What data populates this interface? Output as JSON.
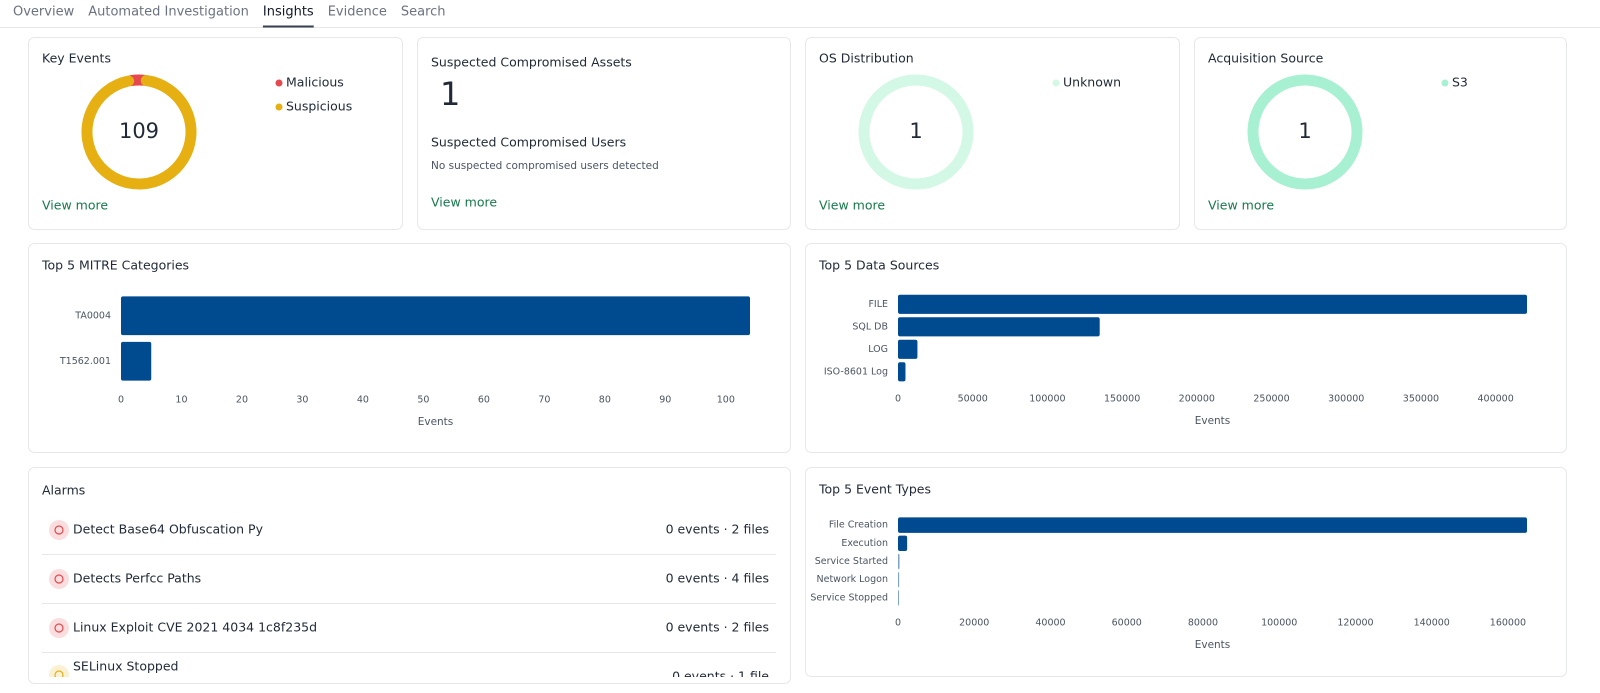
{
  "tabs": [
    "Overview",
    "Automated Investigation",
    "Insights",
    "Evidence",
    "Search"
  ],
  "chart_data": [
    {
      "type": "donut",
      "title": "Key Events",
      "total": 109,
      "categories": [
        "Malicious",
        "Suspicious"
      ],
      "values": [
        5,
        104
      ],
      "colors": [
        "#e5484d",
        "#e6b012"
      ],
      "link": "View more"
    },
    {
      "type": "donut",
      "title": "OS Distribution",
      "total": 1,
      "categories": [
        "Unknown"
      ],
      "values": [
        1
      ],
      "colors": [
        "#d3f8e6"
      ],
      "link": "View more"
    },
    {
      "type": "donut",
      "title": "Acquisition Source",
      "total": 1,
      "categories": [
        "S3"
      ],
      "values": [
        1
      ],
      "colors": [
        "#a8f0d2"
      ],
      "link": "View more"
    },
    {
      "type": "hbar",
      "title": "Top 5 MITRE Categories",
      "categories": [
        "TA0004",
        "T1562.001"
      ],
      "values": [
        104,
        5
      ],
      "color": "#004a8f",
      "xlim": [
        0,
        104
      ],
      "xticks": [
        0,
        10,
        20,
        30,
        40,
        50,
        60,
        70,
        80,
        90,
        100
      ],
      "xlabel": "Events"
    },
    {
      "type": "hbar",
      "title": "Top 5 Data Sources",
      "categories": [
        "FILE",
        "SQL DB",
        "LOG",
        "ISO-8601 Log"
      ],
      "values": [
        421000,
        135000,
        13000,
        5000
      ],
      "color": "#004a8f",
      "xlim": [
        0,
        421000
      ],
      "xticks": [
        0,
        50000,
        100000,
        150000,
        200000,
        250000,
        300000,
        350000,
        400000
      ],
      "xlabel": "Events"
    },
    {
      "type": "hbar",
      "title": "Top 5 Event Types",
      "categories": [
        "File Creation",
        "Execution",
        "Service Started",
        "Network Logon",
        "Service Stopped"
      ],
      "values": [
        165000,
        2400,
        400,
        300,
        200
      ],
      "color": "#004a8f",
      "xlim": [
        0,
        165000
      ],
      "xticks": [
        0,
        20000,
        40000,
        60000,
        80000,
        100000,
        120000,
        140000,
        160000
      ],
      "xlabel": "Events"
    }
  ],
  "assets": {
    "title": "Suspected Compromised Assets",
    "count": 1,
    "users_title": "Suspected Compromised Users",
    "users_text": "No suspected compromised users detected",
    "link": "View more"
  },
  "alarms": {
    "title": "Alarms",
    "items": [
      {
        "name": "Detect Base64 Obfuscation Py",
        "summary": "0 events · 2 files",
        "color": "#e5484d"
      },
      {
        "name": "Detects Perfcc Paths",
        "summary": "0 events · 4 files",
        "color": "#e5484d"
      },
      {
        "name": "Linux Exploit CVE 2021 4034 1c8f235d",
        "summary": "0 events · 2 files",
        "color": "#e5484d"
      },
      {
        "name": "SELinux Stopped",
        "summary": "0 events · 1 file",
        "color": "#e6b012"
      }
    ]
  }
}
